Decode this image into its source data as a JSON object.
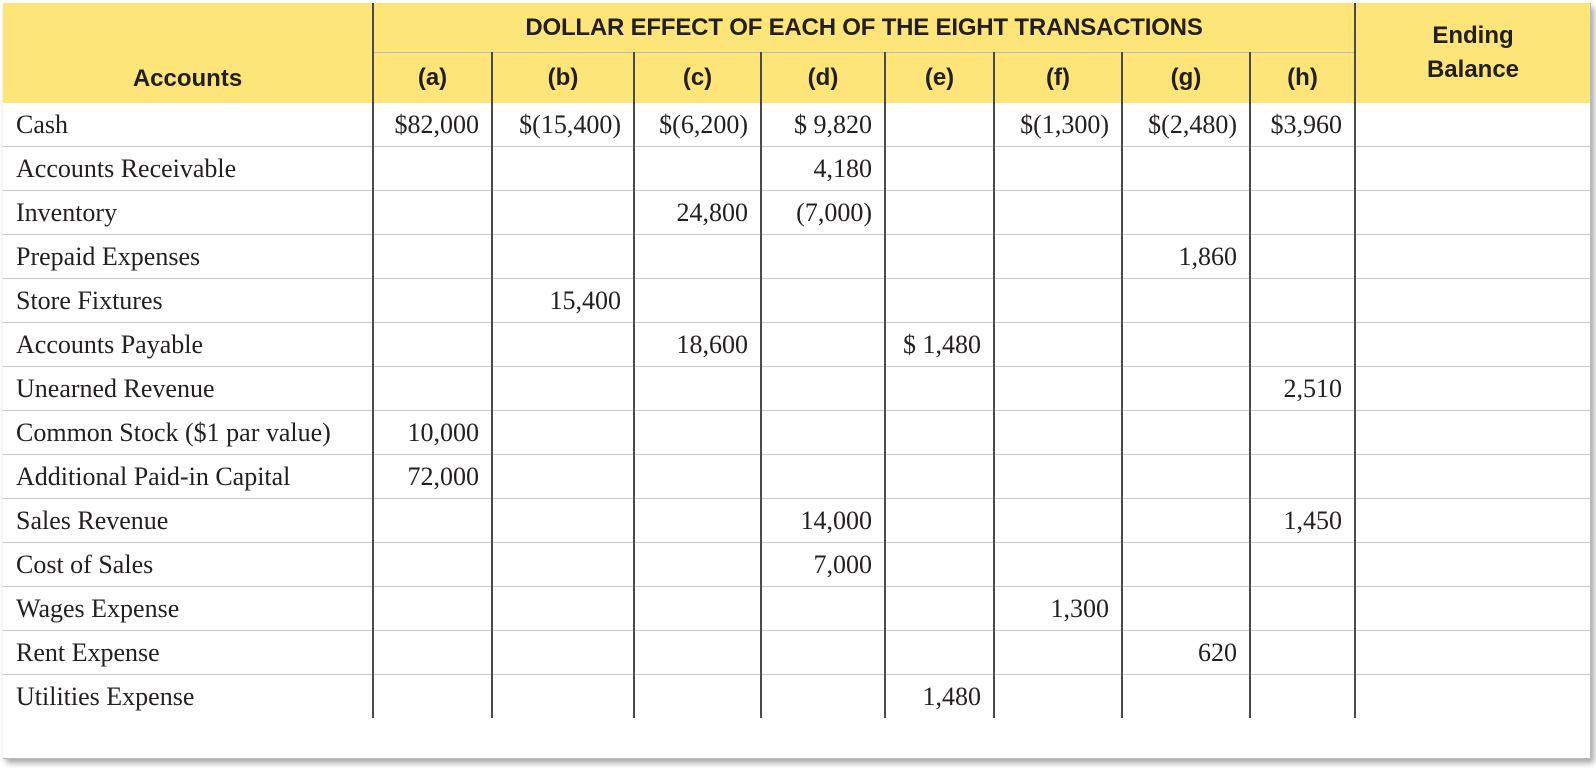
{
  "table": {
    "group_title": "DOLLAR EFFECT OF EACH OF THE EIGHT TRANSACTIONS",
    "accounts_header": "Accounts",
    "ending_header_line1": "Ending",
    "ending_header_line2": "Balance",
    "columns": [
      "(a)",
      "(b)",
      "(c)",
      "(d)",
      "(e)",
      "(f)",
      "(g)",
      "(h)"
    ],
    "rows": [
      {
        "account": "Cash",
        "values": [
          "$82,000",
          "$(15,400)",
          "$(6,200)",
          "$ 9,820",
          "",
          "$(1,300)",
          "$(2,480)",
          "$3,960"
        ],
        "ending": ""
      },
      {
        "account": "Accounts Receivable",
        "values": [
          "",
          "",
          "",
          "4,180",
          "",
          "",
          "",
          ""
        ],
        "ending": ""
      },
      {
        "account": "Inventory",
        "values": [
          "",
          "",
          "24,800",
          "(7,000)",
          "",
          "",
          "",
          ""
        ],
        "ending": ""
      },
      {
        "account": "Prepaid Expenses",
        "values": [
          "",
          "",
          "",
          "",
          "",
          "",
          "1,860",
          ""
        ],
        "ending": ""
      },
      {
        "account": "Store Fixtures",
        "values": [
          "",
          "15,400",
          "",
          "",
          "",
          "",
          "",
          ""
        ],
        "ending": ""
      },
      {
        "account": "Accounts Payable",
        "values": [
          "",
          "",
          "18,600",
          "",
          "$ 1,480",
          "",
          "",
          ""
        ],
        "ending": ""
      },
      {
        "account": "Unearned Revenue",
        "values": [
          "",
          "",
          "",
          "",
          "",
          "",
          "",
          "2,510"
        ],
        "ending": ""
      },
      {
        "account": "Common Stock ($1 par value)",
        "values": [
          "10,000",
          "",
          "",
          "",
          "",
          "",
          "",
          ""
        ],
        "ending": ""
      },
      {
        "account": "Additional Paid-in Capital",
        "values": [
          "72,000",
          "",
          "",
          "",
          "",
          "",
          "",
          ""
        ],
        "ending": ""
      },
      {
        "account": "Sales Revenue",
        "values": [
          "",
          "",
          "",
          "14,000",
          "",
          "",
          "",
          "1,450"
        ],
        "ending": ""
      },
      {
        "account": "Cost of Sales",
        "values": [
          "",
          "",
          "",
          "7,000",
          "",
          "",
          "",
          ""
        ],
        "ending": ""
      },
      {
        "account": "Wages Expense",
        "values": [
          "",
          "",
          "",
          "",
          "",
          "1,300",
          "",
          ""
        ],
        "ending": ""
      },
      {
        "account": "Rent Expense",
        "values": [
          "",
          "",
          "",
          "",
          "",
          "",
          "620",
          ""
        ],
        "ending": ""
      },
      {
        "account": "Utilities Expense",
        "values": [
          "",
          "",
          "",
          "",
          "1,480",
          "",
          "",
          ""
        ],
        "ending": ""
      }
    ]
  },
  "colors": {
    "header_background": "#fde57a",
    "text": "#231f20",
    "rule": "#4a4a4a"
  }
}
